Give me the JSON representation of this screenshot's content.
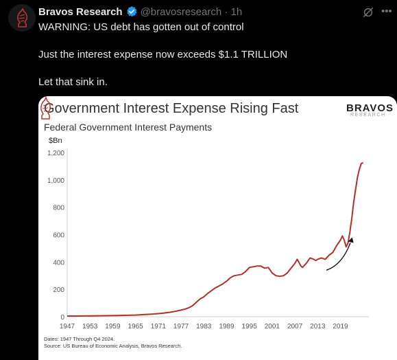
{
  "post": {
    "author": "Bravos Research",
    "handle": "@bravosresearch · 1h",
    "lines": [
      "WARNING: US debt has gotten out of control",
      "Just the interest expense now exceeds $1.1 TRILLION",
      "Let that sink in."
    ],
    "icons": {
      "avatar": "chess-knight-logo",
      "verified": "verified-badge-icon",
      "grok": "grok-icon",
      "more": "more-icon"
    },
    "colors": {
      "verified": "#1d9bf0",
      "line": "#b1312a"
    }
  },
  "card": {
    "brand": "BRAVOS",
    "brand_sub": "RESEARCH",
    "unit": "$Bn",
    "footnote_dates": "Dates: 1947 Through Q4 2024.",
    "footnote_source": "Source: US Bureau of Economic Analysis, Bravos Research."
  },
  "chart_data": {
    "type": "line",
    "title": "Government Interest Expense Rising Fast",
    "subtitle": "Federal Government Interest Payments",
    "ylabel": "$Bn",
    "ylim": [
      0,
      1200
    ],
    "xlim": [
      1947,
      2026.5
    ],
    "y_ticks": [
      "0",
      "200",
      "400",
      "600",
      "800",
      "1,000",
      "1,200"
    ],
    "y_tick_values": [
      0,
      200,
      400,
      600,
      800,
      1000,
      1200
    ],
    "x_ticks": [
      "1947",
      "1953",
      "1959",
      "1965",
      "1971",
      "1977",
      "1983",
      "1989",
      "1995",
      "2001",
      "2007",
      "2013",
      "2019"
    ],
    "x_tick_values": [
      1947,
      1953,
      1959,
      1965,
      1971,
      1977,
      1983,
      1989,
      1995,
      2001,
      2007,
      2013,
      2019
    ],
    "grid": false,
    "annotation": "upward-arrow",
    "series": [
      {
        "color": "#b1312a",
        "x": [
          1947,
          1950,
          1955,
          1960,
          1965,
          1968,
          1970,
          1972,
          1974,
          1976,
          1978,
          1979,
          1980,
          1981,
          1982,
          1983,
          1984,
          1985,
          1986,
          1987,
          1988,
          1989,
          1990,
          1991,
          1992,
          1993,
          1994,
          1995,
          1996,
          1997,
          1998,
          1999,
          2000,
          2001,
          2002,
          2003,
          2004,
          2005,
          2006,
          2007,
          2007.6,
          2008,
          2008.6,
          2009,
          2010,
          2011,
          2012,
          2012.5,
          2013,
          2014,
          2015,
          2016,
          2017,
          2018,
          2019,
          2019.5,
          2020,
          2020.5,
          2021,
          2021.5,
          2022,
          2022.5,
          2023,
          2023.5,
          2024,
          2024.5,
          2025
        ],
        "y": [
          5,
          5,
          7,
          9,
          12,
          17,
          20,
          25,
          32,
          42,
          55,
          65,
          80,
          105,
          130,
          145,
          170,
          190,
          210,
          225,
          240,
          260,
          285,
          300,
          305,
          310,
          330,
          360,
          365,
          370,
          370,
          355,
          360,
          320,
          300,
          295,
          300,
          320,
          355,
          390,
          420,
          400,
          370,
          360,
          390,
          430,
          420,
          410,
          420,
          430,
          420,
          450,
          470,
          520,
          560,
          590,
          560,
          510,
          540,
          620,
          720,
          840,
          930,
          1020,
          1080,
          1120,
          1125
        ]
      }
    ]
  }
}
